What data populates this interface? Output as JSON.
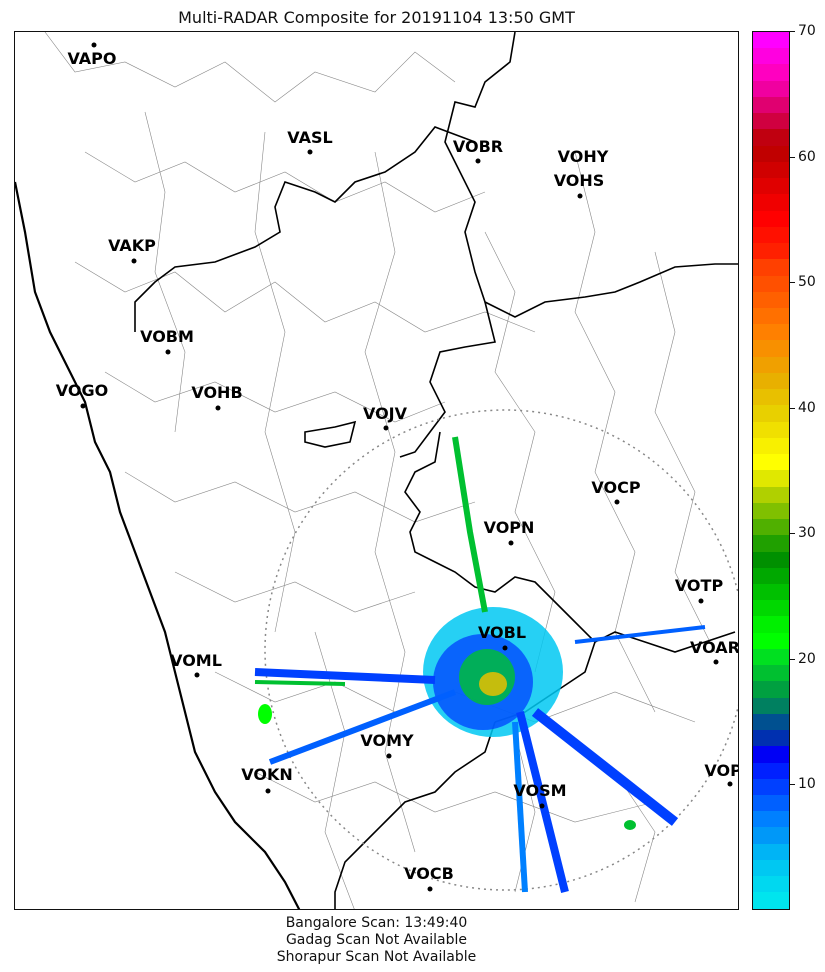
{
  "title": "Multi-RADAR Composite for 20191104 13:50 GMT",
  "stations": [
    {
      "id": "VAPO"
    },
    {
      "id": "VASL"
    },
    {
      "id": "VOBR"
    },
    {
      "id": "VOHY"
    },
    {
      "id": "VOHS"
    },
    {
      "id": "VAKP"
    },
    {
      "id": "VOBM"
    },
    {
      "id": "VOGO"
    },
    {
      "id": "VOHB"
    },
    {
      "id": "VOJV"
    },
    {
      "id": "VOCP"
    },
    {
      "id": "VOPN"
    },
    {
      "id": "VOTP"
    },
    {
      "id": "VOBL"
    },
    {
      "id": "VOAR"
    },
    {
      "id": "VOML"
    },
    {
      "id": "VOMY"
    },
    {
      "id": "VOKN"
    },
    {
      "id": "VOSM"
    },
    {
      "id": "VOPC"
    },
    {
      "id": "VOCB"
    }
  ],
  "colorbar": {
    "ticks": [
      "10",
      "20",
      "30",
      "40",
      "50",
      "60",
      "70"
    ],
    "min": 0,
    "max": 70,
    "colors": [
      "#00e5ee",
      "#00d8f0",
      "#00c8f2",
      "#00b4f5",
      "#0098f8",
      "#0080ff",
      "#0060ff",
      "#0040ff",
      "#0020ff",
      "#0000f5",
      "#0030b0",
      "#005090",
      "#008060",
      "#00a040",
      "#00c030",
      "#00e020",
      "#00ff00",
      "#00f000",
      "#00d800",
      "#00c000",
      "#00a800",
      "#009000",
      "#20a000",
      "#50b000",
      "#80c000",
      "#b0d000",
      "#e0e800",
      "#ffff00",
      "#f8f000",
      "#f0e000",
      "#e8d000",
      "#e8c000",
      "#e8b000",
      "#f0a000",
      "#f89000",
      "#ff8000",
      "#ff7000",
      "#ff6000",
      "#ff5000",
      "#ff4000",
      "#ff2000",
      "#ff1000",
      "#ff0000",
      "#f00000",
      "#e00000",
      "#d00000",
      "#c00000",
      "#c00010",
      "#d00040",
      "#e00070",
      "#f000a0",
      "#ff00c0",
      "#ff00e0",
      "#ff00ff"
    ]
  },
  "footer": {
    "line1": "Bangalore Scan: 13:49:40",
    "line2": "Gadag Scan Not Available",
    "line3": "Shorapur Scan Not Available"
  }
}
